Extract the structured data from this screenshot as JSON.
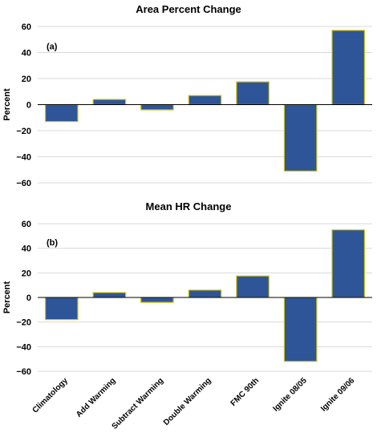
{
  "figure": {
    "charts": [
      "area",
      "hr"
    ]
  },
  "chart_data": [
    {
      "type": "bar",
      "title": "Area Percent Change",
      "panel_label": "(a)",
      "ylabel": "Percent",
      "xlabel": "",
      "categories": [
        "Climatology",
        "Add Warming",
        "Subtract Warming",
        "Double Warming",
        "FMC 90th",
        "Ignite 08/05",
        "Ignite 09/06"
      ],
      "values": [
        -13,
        4,
        -4,
        7,
        17.5,
        -51,
        57
      ],
      "ylim": [
        -60,
        60
      ],
      "yticks": [
        60,
        40,
        20,
        0,
        -20,
        -40,
        -60
      ],
      "ytick_labels": [
        "60",
        "40",
        "20",
        "0",
        "−20",
        "−40",
        "−60"
      ],
      "grid": true,
      "show_xticklabels": false,
      "bar_color": "#2e5597",
      "bar_edge_color": "#d4c51a"
    },
    {
      "type": "bar",
      "title": "Mean HR Change",
      "panel_label": "(b)",
      "ylabel": "Percent",
      "xlabel": "",
      "categories": [
        "Climatology",
        "Add Warming",
        "Subtract Warming",
        "Double Warming",
        "FMC 90th",
        "Ignite 08/05",
        "Ignite 09/06"
      ],
      "values": [
        -18,
        4,
        -4,
        6,
        17.5,
        -52,
        55
      ],
      "ylim": [
        -60,
        60
      ],
      "yticks": [
        60,
        40,
        20,
        0,
        -20,
        -40,
        -60
      ],
      "ytick_labels": [
        "60",
        "40",
        "20",
        "0",
        "−20",
        "−40",
        "−60"
      ],
      "grid": true,
      "show_xticklabels": true,
      "bar_color": "#2e5597",
      "bar_edge_color": "#d4c51a"
    }
  ]
}
